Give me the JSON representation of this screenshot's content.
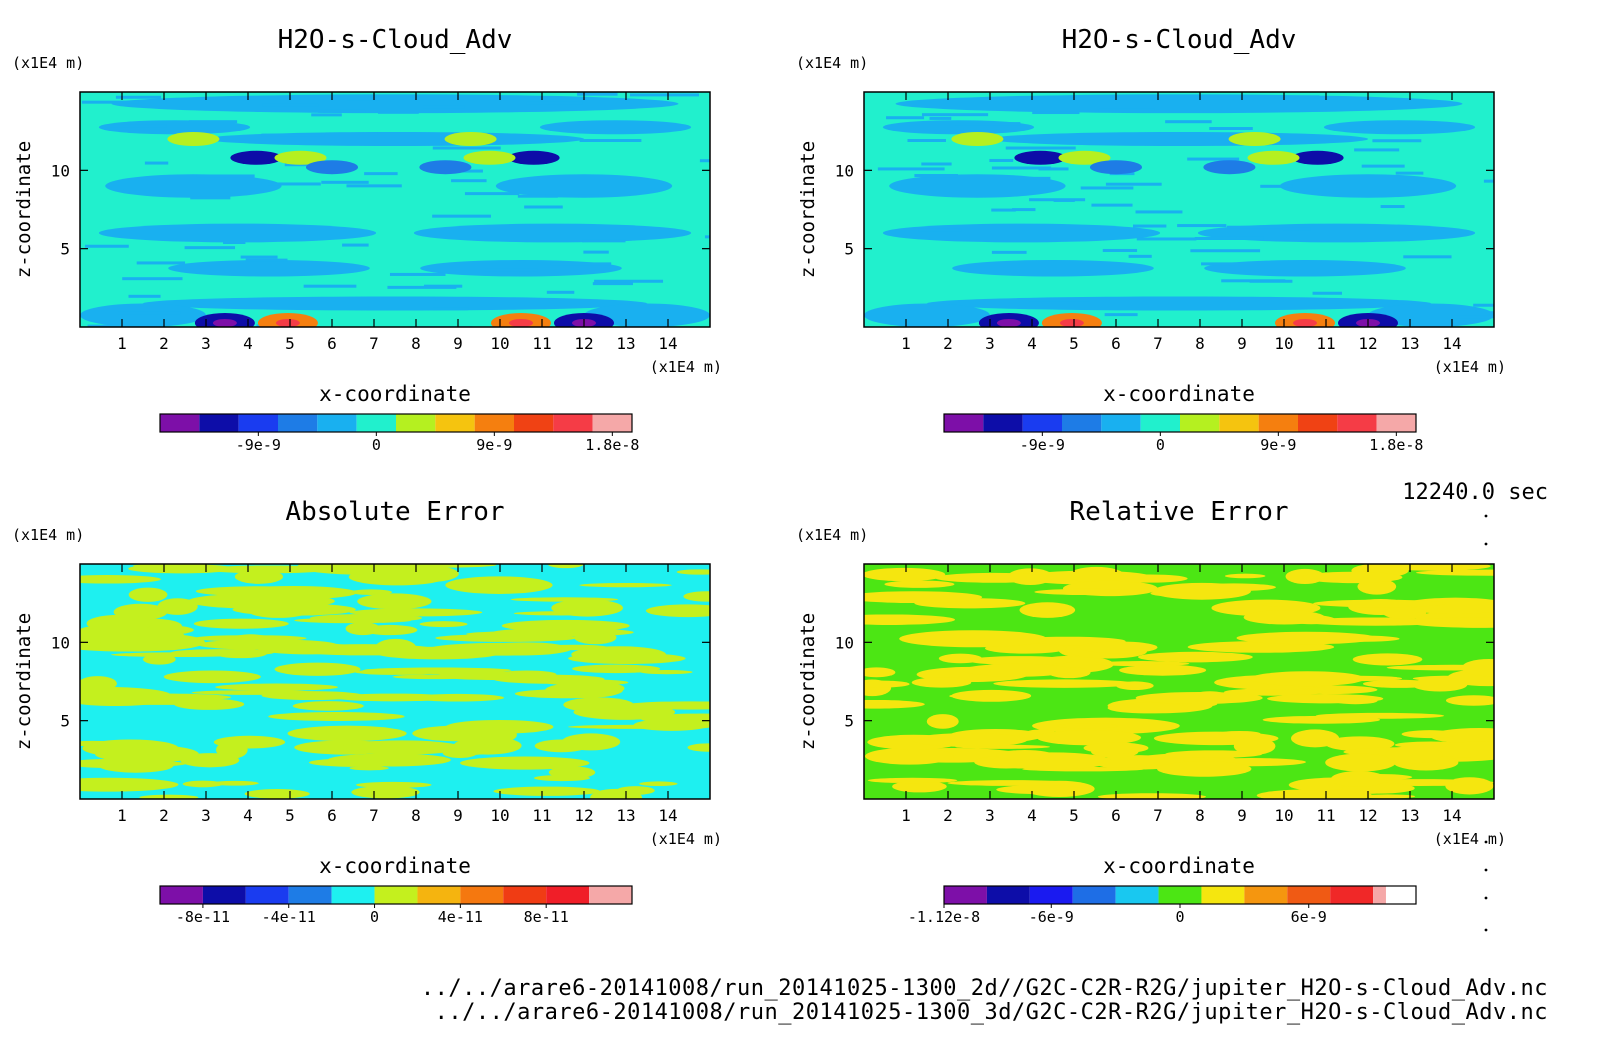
{
  "timestamp": "12240.0 sec",
  "footer": {
    "file_2d": "../../arare6-20141008/run_20141025-1300_2d//G2C-C2R-R2G/jupiter_H2O-s-Cloud_Adv.nc",
    "file_3d": "../../arare6-20141008/run_20141025-1300_3d/G2C-C2R-R2G/jupiter_H2O-s-Cloud_Adv.nc"
  },
  "chart_data": [
    {
      "type": "heatmap",
      "title": "H2O-s-Cloud_Adv",
      "xlabel": "x-coordinate",
      "ylabel": "z-coordinate",
      "x_unit": "(x1E4 m)",
      "y_unit": "(x1E4 m)",
      "xlim": [
        0,
        15
      ],
      "ylim": [
        0,
        15
      ],
      "x_ticks": [
        "1",
        "2",
        "3",
        "4",
        "5",
        "6",
        "7",
        "8",
        "9",
        "10",
        "11",
        "12",
        "13",
        "14"
      ],
      "y_ticks": [
        "5",
        "10"
      ],
      "pattern": "cloud",
      "colorbar": {
        "colors": [
          "#7d0fa8",
          "#0d0da8",
          "#1a3cf0",
          "#1e7ce6",
          "#19b0f0",
          "#21f0cd",
          "#b5f020",
          "#f5c40f",
          "#f57f0f",
          "#f04214",
          "#f53c46",
          "#f5a8a8"
        ],
        "tick_labels": [
          "-9e-9",
          "0",
          "9e-9",
          "1.8e-8"
        ],
        "tick_positions": [
          2.5,
          5.5,
          8.5,
          11.5
        ]
      }
    },
    {
      "type": "heatmap",
      "title": "H2O-s-Cloud_Adv",
      "xlabel": "x-coordinate",
      "ylabel": "z-coordinate",
      "x_unit": "(x1E4 m)",
      "y_unit": "(x1E4 m)",
      "xlim": [
        0,
        15
      ],
      "ylim": [
        0,
        15
      ],
      "x_ticks": [
        "1",
        "2",
        "3",
        "4",
        "5",
        "6",
        "7",
        "8",
        "9",
        "10",
        "11",
        "12",
        "13",
        "14"
      ],
      "y_ticks": [
        "5",
        "10"
      ],
      "pattern": "cloud",
      "colorbar": {
        "colors": [
          "#7d0fa8",
          "#0d0da8",
          "#1a3cf0",
          "#1e7ce6",
          "#19b0f0",
          "#21f0cd",
          "#b5f020",
          "#f5c40f",
          "#f57f0f",
          "#f04214",
          "#f53c46",
          "#f5a8a8"
        ],
        "tick_labels": [
          "-9e-9",
          "0",
          "9e-9",
          "1.8e-8"
        ],
        "tick_positions": [
          2.5,
          5.5,
          8.5,
          11.5
        ]
      }
    },
    {
      "type": "heatmap",
      "title": "Absolute Error",
      "xlabel": "x-coordinate",
      "ylabel": "z-coordinate",
      "x_unit": "(x1E4 m)",
      "y_unit": "(x1E4 m)",
      "xlim": [
        0,
        15
      ],
      "ylim": [
        0,
        15
      ],
      "x_ticks": [
        "1",
        "2",
        "3",
        "4",
        "5",
        "6",
        "7",
        "8",
        "9",
        "10",
        "11",
        "12",
        "13",
        "14"
      ],
      "y_ticks": [
        "5",
        "10"
      ],
      "pattern": "abs",
      "field_colors": [
        "#1ef0f0",
        "#c4f01e"
      ],
      "colorbar": {
        "colors": [
          "#7d0fa8",
          "#0d0da8",
          "#1a3cf0",
          "#1e7ce6",
          "#1ef0f0",
          "#c4f01e",
          "#f5b40f",
          "#f5780f",
          "#f03c14",
          "#f01e28",
          "#f5a8a8"
        ],
        "tick_labels": [
          "-8e-11",
          "-4e-11",
          "0",
          "4e-11",
          "8e-11"
        ],
        "tick_positions": [
          1,
          3,
          5,
          7,
          9
        ]
      }
    },
    {
      "type": "heatmap",
      "title": "Relative Error",
      "xlabel": "x-coordinate",
      "ylabel": "z-coordinate",
      "x_unit": "(x1E4 m)",
      "y_unit": "(x1E4 m)",
      "xlim": [
        0,
        15
      ],
      "ylim": [
        0,
        15
      ],
      "x_ticks": [
        "1",
        "2",
        "3",
        "4",
        "5",
        "6",
        "7",
        "8",
        "9",
        "10",
        "11",
        "12",
        "13",
        "14"
      ],
      "y_ticks": [
        "5",
        "10"
      ],
      "pattern": "rel",
      "field_colors": [
        "#4ce614",
        "#f5e60f"
      ],
      "colorbar": {
        "colors": [
          "#7d0fa8",
          "#0d0da8",
          "#1a1af0",
          "#1e6ee6",
          "#19c8f0",
          "#4ce614",
          "#f5e60f",
          "#f5960f",
          "#f05a14",
          "#f02828",
          "#f5a8a8"
        ],
        "tick_labels": [
          "-1.12e-8",
          "-6e-9",
          "0",
          "6e-9"
        ],
        "tick_positions": [
          0,
          2.5,
          5.5,
          8.5
        ],
        "partial_last": true
      }
    }
  ]
}
